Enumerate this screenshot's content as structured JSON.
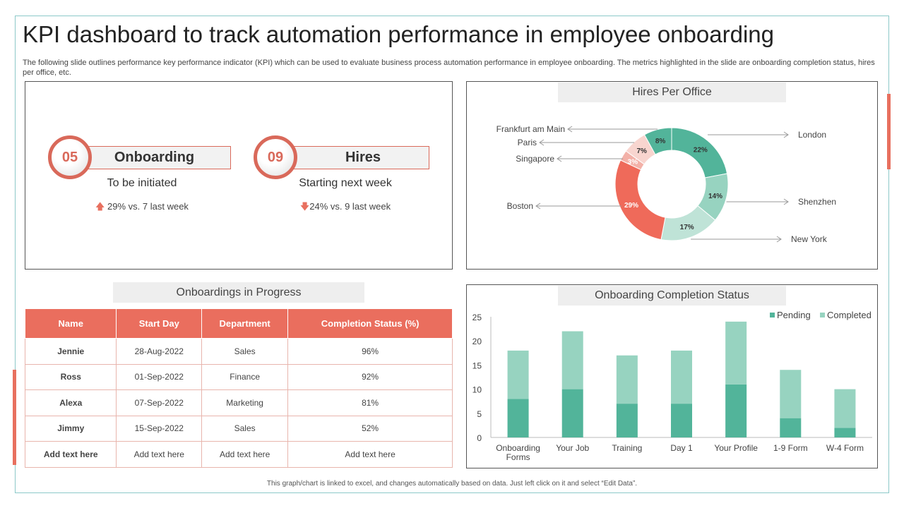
{
  "title": "KPI dashboard to track automation performance in employee onboarding",
  "subtitle": "The following slide outlines performance key performance indicator (KPI) which can be used to evaluate business process automation performance in employee onboarding. The metrics highlighted in the slide are onboarding completion status, hires per office, etc.",
  "kpis": [
    {
      "number": "05",
      "label": "Onboarding",
      "sub": "To be initiated",
      "trend": "29% vs. 7 last week",
      "direction": "up"
    },
    {
      "number": "09",
      "label": "Hires",
      "sub": "Starting next week",
      "trend": "24% vs. 9 last week",
      "direction": "down"
    }
  ],
  "table": {
    "title": "Onboardings in Progress",
    "headers": [
      "Name",
      "Start Day",
      "Department",
      "Completion Status (%)"
    ],
    "rows": [
      [
        "Jennie",
        "28-Aug-2022",
        "Sales",
        "96%"
      ],
      [
        "Ross",
        "01-Sep-2022",
        "Finance",
        "92%"
      ],
      [
        "Alexa",
        "07-Sep-2022",
        "Marketing",
        "81%"
      ],
      [
        "Jimmy",
        "15-Sep-2022",
        "Sales",
        "52%"
      ],
      [
        "Add text here",
        "Add text here",
        "Add text here",
        "Add text here"
      ]
    ]
  },
  "footer": "This graph/chart is linked to excel, and changes automatically based on data. Just left click on it and select “Edit Data”.",
  "colors": {
    "accent": "#ea6e5e",
    "pending": "#52b49a",
    "completed": "#97d3c0"
  },
  "chart_data": [
    {
      "type": "pie",
      "title": "Hires Per Office",
      "donut": true,
      "labels": [
        "London",
        "Shenzhen",
        "New York",
        "Boston",
        "Singapore",
        "Paris",
        "Frankfurt am Main"
      ],
      "values": [
        22,
        14,
        17,
        29,
        3,
        7,
        8
      ],
      "colors": [
        "#52b49a",
        "#97d3c0",
        "#bfe3d7",
        "#ef6a5a",
        "#f3b1a8",
        "#f8d5cf",
        "#52b49a"
      ]
    },
    {
      "type": "bar",
      "stacked": true,
      "title": "Onboarding Completion Status",
      "categories": [
        "Onboarding Forms",
        "Your Job",
        "Training",
        "Day 1",
        "Your Profile",
        "1-9 Form",
        "W-4 Form"
      ],
      "series": [
        {
          "name": "Pending",
          "values": [
            8,
            10,
            7,
            7,
            11,
            4,
            2
          ]
        },
        {
          "name": "Completed",
          "values": [
            10,
            12,
            10,
            11,
            13,
            10,
            8
          ]
        }
      ],
      "ylim": [
        0,
        25
      ],
      "yticks": [
        0,
        5,
        10,
        15,
        20,
        25
      ],
      "legend": "top-right"
    }
  ]
}
